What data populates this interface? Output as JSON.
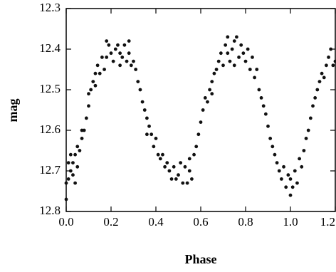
{
  "chart_data": {
    "type": "scatter",
    "x_label": "Phase",
    "y_label": "mag",
    "xlim": [
      0,
      1.2
    ],
    "ylim": [
      12.3,
      12.8
    ],
    "y_inverted": true,
    "color": "#111111",
    "xticks": [
      {
        "value": 0,
        "label": "0.0"
      },
      0.2,
      0.4,
      0.6,
      0.8,
      {
        "value": 1,
        "label": "1.0"
      },
      1.2
    ],
    "yticks": [
      12.3,
      12.4,
      12.5,
      12.6,
      12.7,
      12.8
    ],
    "x": [
      0,
      0,
      0.01,
      0.01,
      0.02,
      0.02,
      0.03,
      0.03,
      0.04,
      0.04,
      0.05,
      0.05,
      0.06,
      0.07,
      0.07,
      0.08,
      0.09,
      0.1,
      0.1,
      0.11,
      0.12,
      0.13,
      0.13,
      0.14,
      0.15,
      0.16,
      0.17,
      0.18,
      0.18,
      0.19,
      0.2,
      0.21,
      0.22,
      0.23,
      0.24,
      0.24,
      0.25,
      0.26,
      0.27,
      0.28,
      0.28,
      0.29,
      0.3,
      0.31,
      0.32,
      0.33,
      0.34,
      0.35,
      0.36,
      0.36,
      0.37,
      0.38,
      0.39,
      0.4,
      0.41,
      0.42,
      0.43,
      0.44,
      0.45,
      0.46,
      0.47,
      0.48,
      0.49,
      0.5,
      0.51,
      0.52,
      0.53,
      0.54,
      0.55,
      0.55,
      0.56,
      0.57,
      0.58,
      0.59,
      0.6,
      0.61,
      0.62,
      0.63,
      0.64,
      0.65,
      0.65,
      0.66,
      0.67,
      0.68,
      0.69,
      0.7,
      0.71,
      0.72,
      0.72,
      0.73,
      0.74,
      0.75,
      0.75,
      0.76,
      0.77,
      0.78,
      0.79,
      0.8,
      0.81,
      0.82,
      0.83,
      0.84,
      0.85,
      0.86,
      0.87,
      0.88,
      0.89,
      0.9,
      0.91,
      0.92,
      0.93,
      0.94,
      0.95,
      0.96,
      0.97,
      0.98,
      0.99,
      1.0,
      1.0,
      1.01,
      1.02,
      1.03,
      1.04,
      1.05,
      1.06,
      1.07,
      1.08,
      1.09,
      1.1,
      1.11,
      1.12,
      1.13,
      1.14,
      1.15,
      1.16,
      1.17,
      1.18,
      1.19,
      1.2
    ],
    "values": [
      12.73,
      12.77,
      12.68,
      12.72,
      12.7,
      12.66,
      12.71,
      12.68,
      12.73,
      12.66,
      12.69,
      12.64,
      12.65,
      12.62,
      12.6,
      12.6,
      12.57,
      12.54,
      12.51,
      12.5,
      12.48,
      12.49,
      12.46,
      12.44,
      12.46,
      12.42,
      12.45,
      12.38,
      12.42,
      12.39,
      12.41,
      12.43,
      12.4,
      12.39,
      12.41,
      12.44,
      12.42,
      12.39,
      12.43,
      12.38,
      12.41,
      12.44,
      12.43,
      12.45,
      12.48,
      12.5,
      12.53,
      12.55,
      12.57,
      12.61,
      12.59,
      12.61,
      12.64,
      12.62,
      12.66,
      12.67,
      12.66,
      12.69,
      12.68,
      12.7,
      12.72,
      12.69,
      12.72,
      12.71,
      12.68,
      12.73,
      12.69,
      12.73,
      12.67,
      12.7,
      12.72,
      12.66,
      12.64,
      12.61,
      12.58,
      12.55,
      12.52,
      12.53,
      12.5,
      12.48,
      12.51,
      12.46,
      12.45,
      12.43,
      12.41,
      12.44,
      12.39,
      12.37,
      12.41,
      12.43,
      12.4,
      12.38,
      12.44,
      12.37,
      12.42,
      12.39,
      12.41,
      12.43,
      12.4,
      12.45,
      12.42,
      12.47,
      12.45,
      12.5,
      12.52,
      12.54,
      12.56,
      12.59,
      12.62,
      12.64,
      12.66,
      12.68,
      12.7,
      12.72,
      12.69,
      12.74,
      12.71,
      12.76,
      12.72,
      12.74,
      12.7,
      12.73,
      12.67,
      12.69,
      12.65,
      12.62,
      12.6,
      12.57,
      12.54,
      12.52,
      12.5,
      12.48,
      12.46,
      12.47,
      12.44,
      12.42,
      12.4,
      12.44,
      12.43
    ]
  }
}
